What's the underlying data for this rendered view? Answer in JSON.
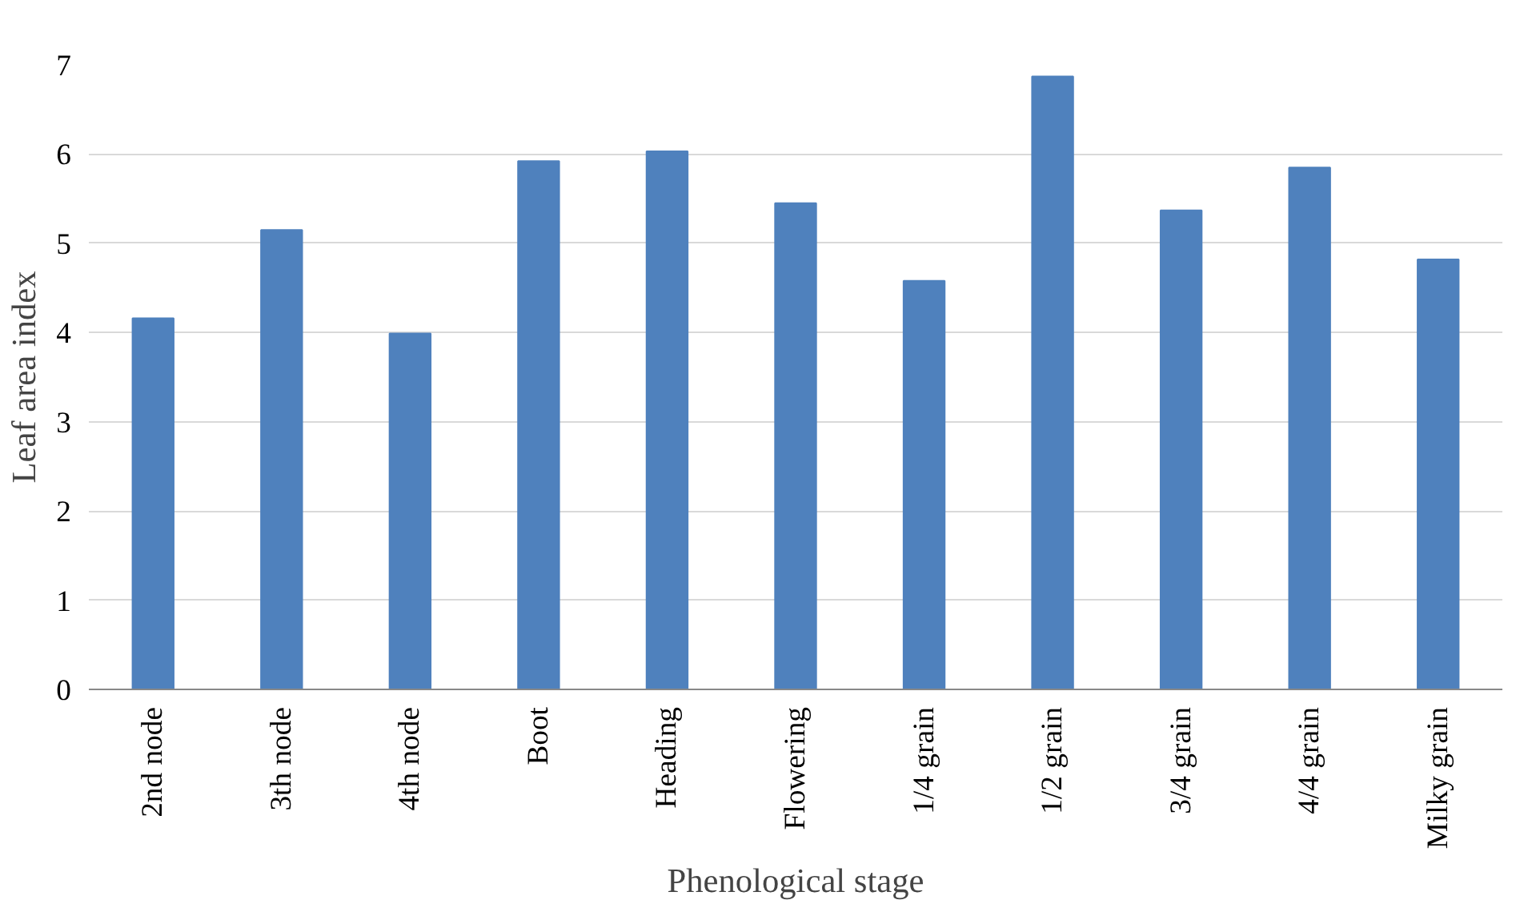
{
  "chart_data": {
    "type": "bar",
    "categories": [
      "2nd node",
      "3th node",
      "4th node",
      "Boot",
      "Heading",
      "Flowering",
      "1/4 grain",
      "1/2 grain",
      "3/4 grain",
      "4/4 grain",
      "Milky grain"
    ],
    "values": [
      4.16,
      5.15,
      3.99,
      5.92,
      6.03,
      5.45,
      4.58,
      6.87,
      5.37,
      5.85,
      4.82
    ],
    "color": "#4f81bd",
    "xlabel": "Phenological stage",
    "ylabel": "Leaf area index",
    "ylim": [
      0,
      7
    ],
    "yticks": [
      0,
      1,
      2,
      3,
      4,
      5,
      6,
      7
    ],
    "grid": "y"
  }
}
